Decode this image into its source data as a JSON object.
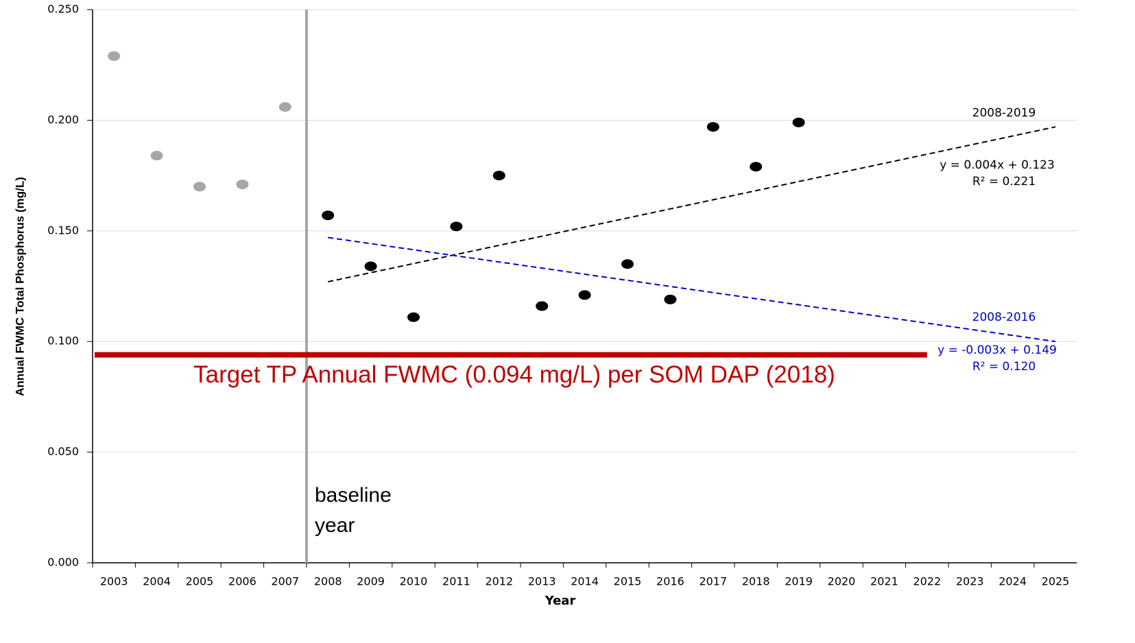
{
  "chart_data": {
    "type": "scatter",
    "y_label": "Annual FWMC Total Phosphorus (mg/L)",
    "x_label": "Year",
    "categories": [
      "2003",
      "2004",
      "2005",
      "2006",
      "2007",
      "2008",
      "2009",
      "2010",
      "2011",
      "2012",
      "2013",
      "2014",
      "2015",
      "2016",
      "2017",
      "2018",
      "2019",
      "2020",
      "2021",
      "2022",
      "2023",
      "2024",
      "2025"
    ],
    "ylim": [
      0,
      0.25
    ],
    "yticks": [
      {
        "value": 0,
        "label": "0.000"
      },
      {
        "value": 0.05,
        "label": "0.050"
      },
      {
        "value": 0.1,
        "label": "0.100"
      },
      {
        "value": 0.15,
        "label": "0.150"
      },
      {
        "value": 0.2,
        "label": "0.200"
      },
      {
        "value": 0.25,
        "label": "0.250"
      }
    ],
    "grid": true,
    "series": [
      {
        "color": "#a6a6a6",
        "values": [
          0.229,
          0.184,
          0.17,
          0.171,
          0.206,
          null,
          null,
          null,
          null,
          null,
          null,
          null,
          null,
          null,
          null,
          null,
          null,
          null,
          null,
          null,
          null,
          null,
          null
        ]
      },
      {
        "color": "#000000",
        "values": [
          null,
          null,
          null,
          null,
          null,
          0.157,
          0.134,
          0.111,
          0.152,
          0.175,
          0.116,
          0.121,
          0.135,
          0.119,
          0.197,
          0.179,
          0.199,
          null,
          null,
          null,
          null,
          null,
          null
        ]
      }
    ],
    "trendlines": [
      {
        "name": "2008-2019",
        "equation": "y = 0.004x + 0.123",
        "r2": "R² = 0.221",
        "color": "#000000",
        "x": [
          "2008",
          "2025"
        ],
        "values": [
          0.127,
          0.197
        ]
      },
      {
        "name": "2008-2016",
        "equation": "y = -0.003x + 0.149",
        "r2": "R² = 0.120",
        "color": "#0000cc",
        "x": [
          "2008",
          "2025"
        ],
        "values": [
          0.147,
          0.1
        ]
      }
    ],
    "target": {
      "value": 0.094,
      "label": "Target TP Annual FWMC (0.094 mg/L) per SOM DAP (2018)",
      "color": "#c00000",
      "end": "2022"
    },
    "baseline": {
      "after": "2007",
      "label": [
        "baseline",
        "year"
      ],
      "color": "#a6a6a6"
    }
  }
}
